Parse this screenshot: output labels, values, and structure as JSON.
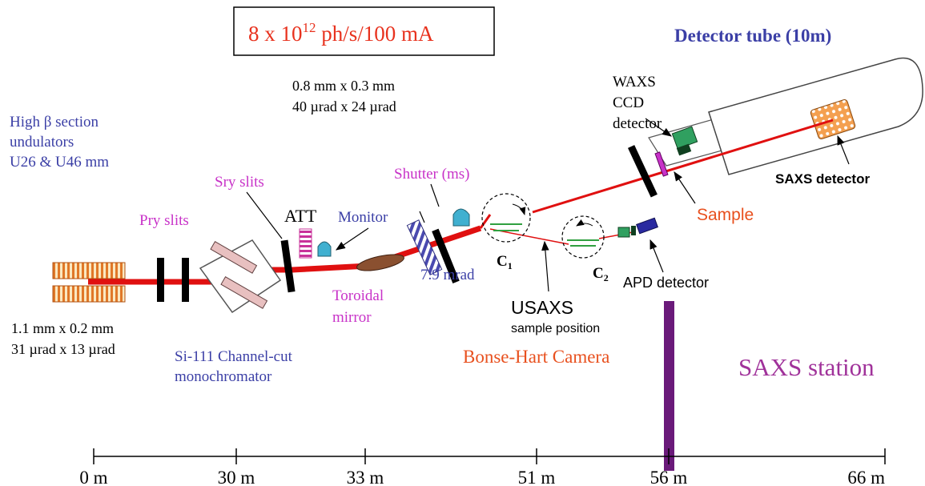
{
  "flux": {
    "mantissa": "8 x 10",
    "exponent": "12",
    "unit": " ph/s/100 mA",
    "color": "#e8321e"
  },
  "detector_tube": {
    "label": "Detector tube (10m)",
    "color": "#3b3fa6"
  },
  "undulator": {
    "lines": [
      "High β section",
      "undulators",
      "U26 & U46 mm"
    ],
    "color": "#3b3fa6"
  },
  "beam_size_source": {
    "lines": [
      "1.1 mm x 0.2 mm",
      "31 µrad x 13 µrad"
    ]
  },
  "beam_size_mirror": {
    "lines": [
      "0.8 mm x 0.3 mm",
      "40 µrad x 24 µrad"
    ]
  },
  "labels": {
    "pry_slits": "Pry slits",
    "sry_slits": "Sry slits",
    "att": "ATT",
    "monitor": "Monitor",
    "shutter": "Shutter (ms)",
    "toroidal_mirror": [
      "Toroidal",
      "mirror"
    ],
    "angle": "7.9 mrad",
    "monochromator": [
      "Si-111 Channel-cut",
      "monochromator"
    ],
    "c1_letter": "C",
    "c1_sub": "1",
    "c2_letter": "C",
    "c2_sub": "2",
    "usaxs": "USAXS",
    "usaxs_sub": "sample position",
    "bonse_hart": "Bonse-Hart Camera",
    "waxs": [
      "WAXS",
      "CCD",
      "detector"
    ],
    "sample": "Sample",
    "apd_detector": "APD detector",
    "saxs_detector": "SAXS detector",
    "saxs_station": "SAXS station"
  },
  "colors": {
    "beam": "#e01010",
    "magenta_label": "#c832c8",
    "orange_label": "#e8501e",
    "blue_label": "#3b3fa6",
    "station_label": "#a0329a",
    "station_bar": "#6a1a7a"
  },
  "distance_axis": {
    "ticks": [
      "0 m",
      "30 m",
      "33 m",
      "51 m",
      "56 m",
      "66 m"
    ]
  }
}
